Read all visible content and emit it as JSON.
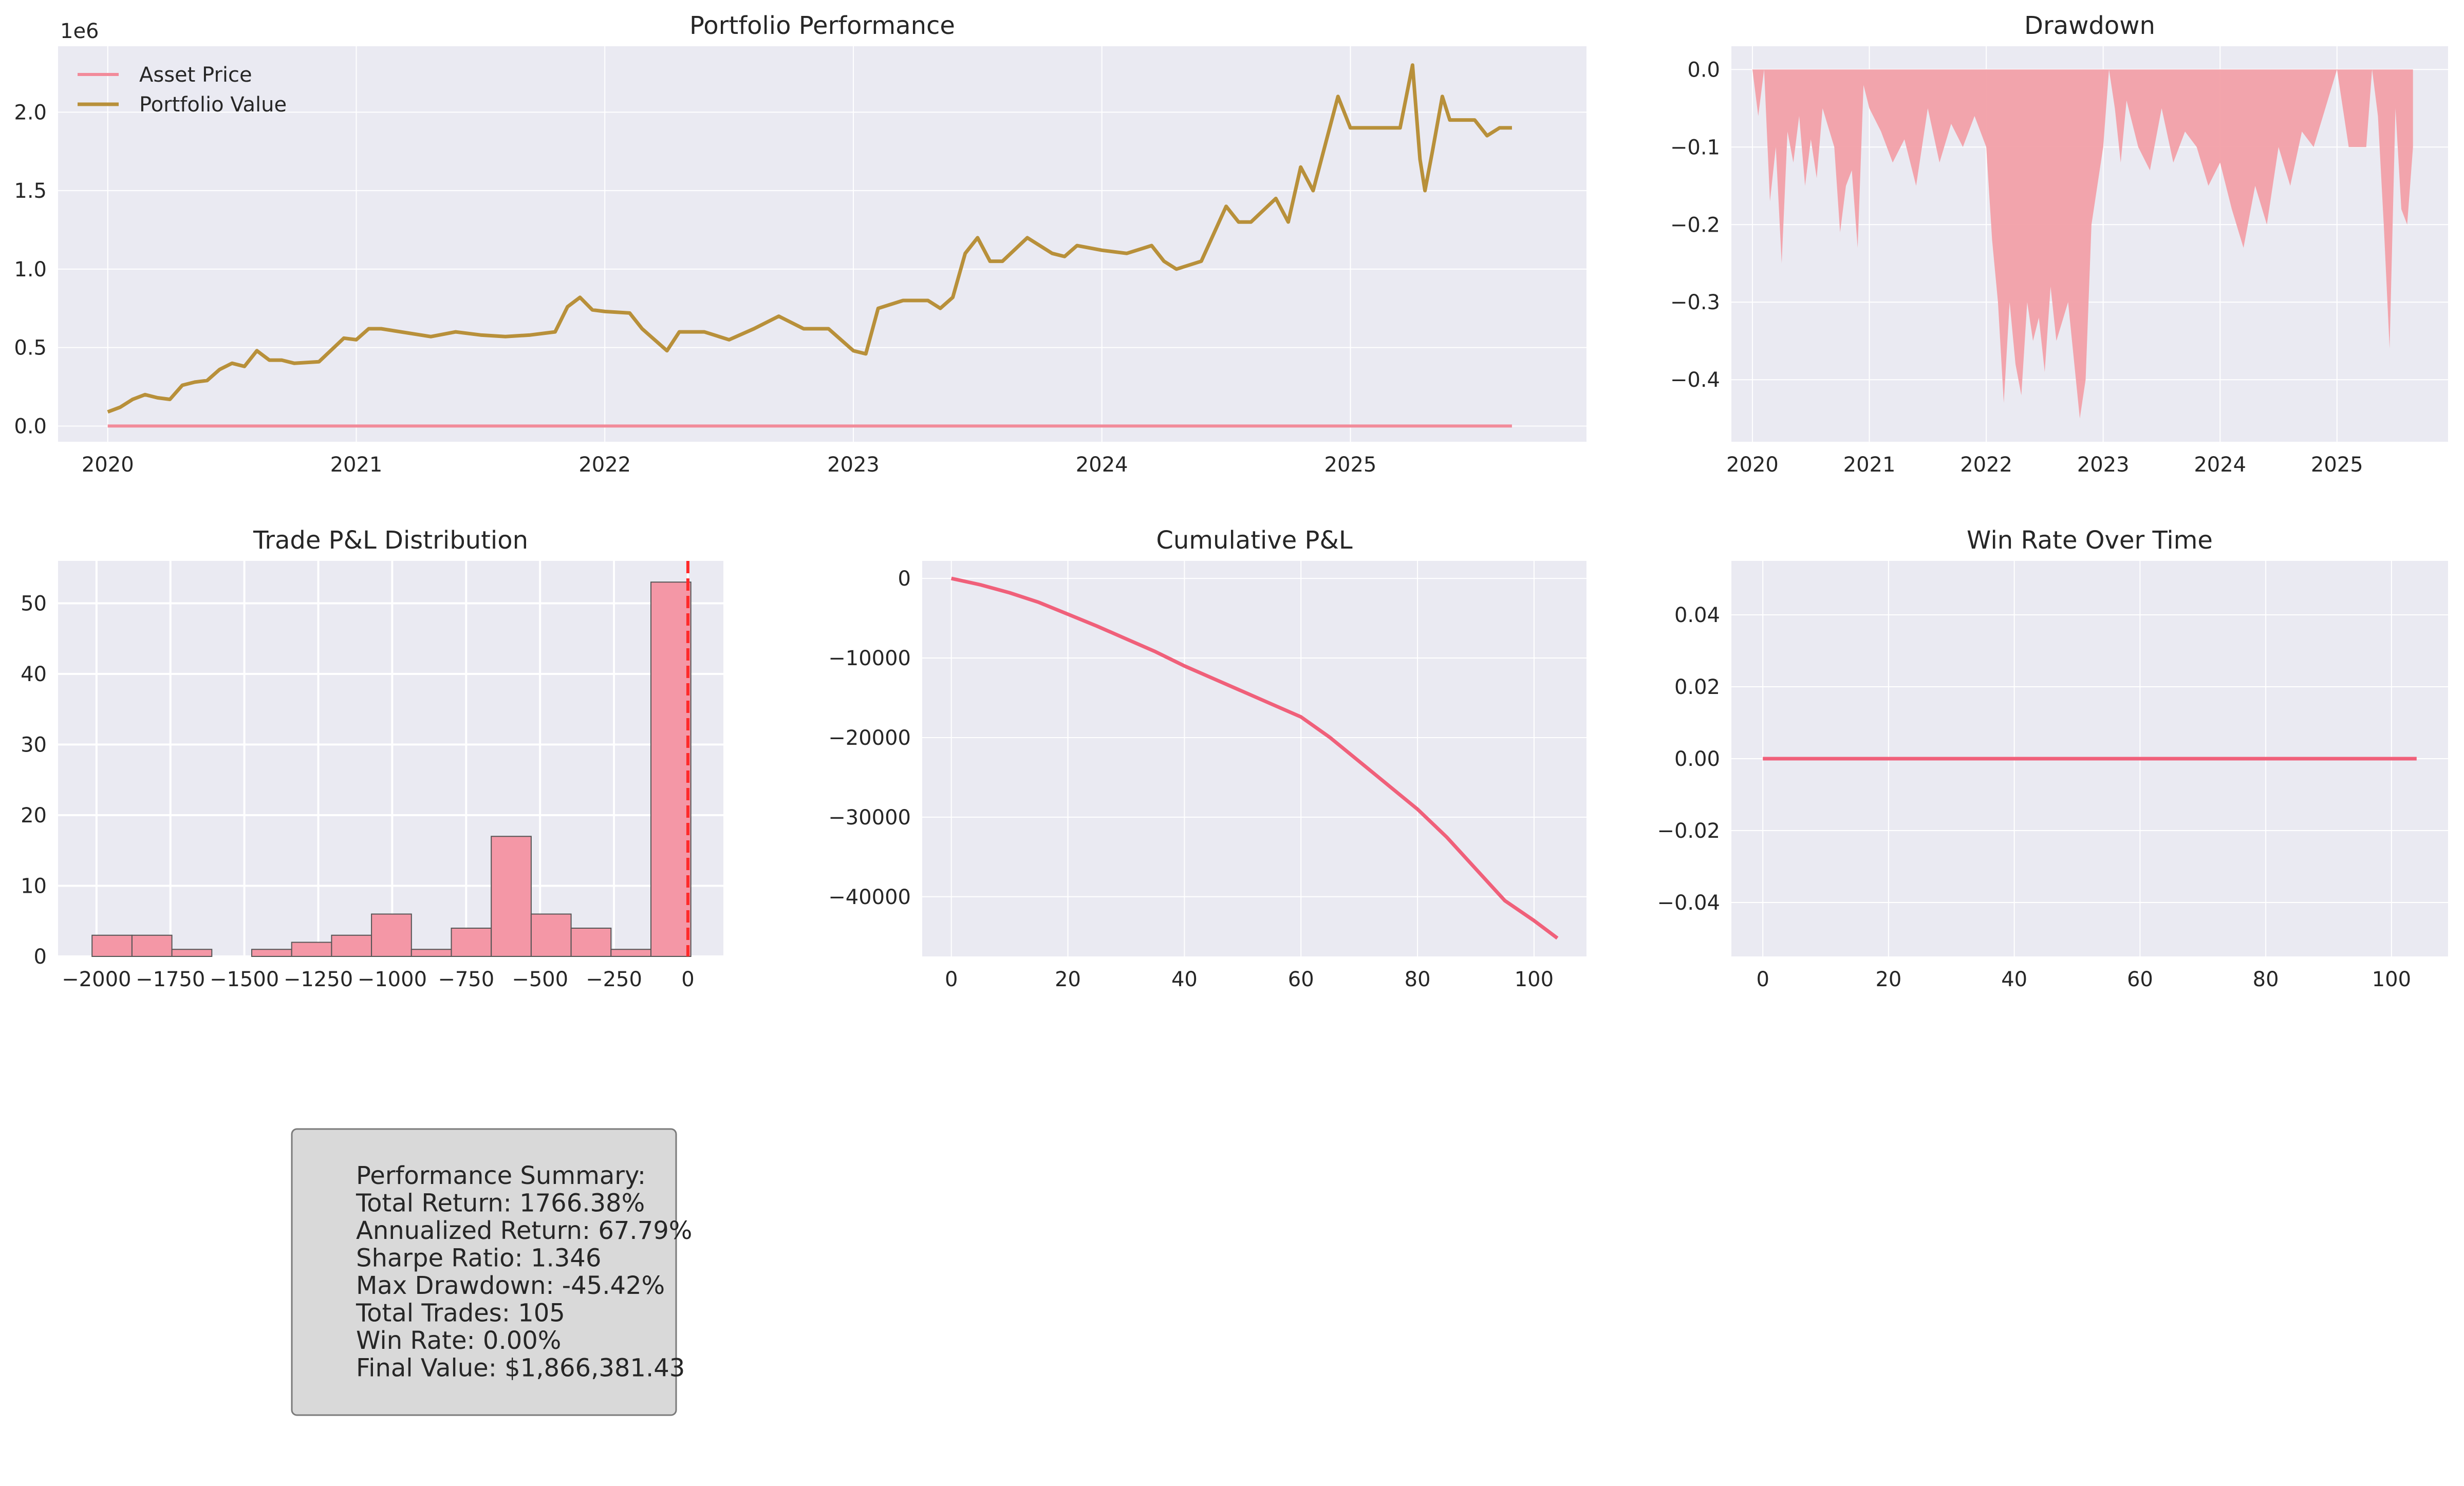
{
  "figure": {
    "background": "#ffffff",
    "axes_facecolor": "#eaeaf2",
    "grid_color": "#ffffff"
  },
  "colors": {
    "asset_price": "#f28b9a",
    "portfolio_value": "#b8903a",
    "drawdown_fill": "#f2a0a8",
    "histogram_bar": "#f497a6",
    "histogram_edge": "#555555",
    "zero_line": "#ff2a2a",
    "cumulative_line": "#f0607a",
    "winrate_line": "#f0607a",
    "summary_box": "#d9d9d9"
  },
  "chart_data": [
    {
      "id": "portfolio",
      "type": "line",
      "title": "Portfolio Performance",
      "xlabel": "",
      "ylabel": "",
      "y_offset_text": "1e6",
      "xlim": [
        2019.8,
        2025.95
      ],
      "ylim": [
        -0.1,
        2.42
      ],
      "x_ticks": [
        2020,
        2021,
        2022,
        2023,
        2024,
        2025
      ],
      "x_tick_labels": [
        "2020",
        "2021",
        "2022",
        "2023",
        "2024",
        "2025"
      ],
      "y_ticks": [
        0.0,
        0.5,
        1.0,
        1.5,
        2.0
      ],
      "y_tick_labels": [
        "0.0",
        "0.5",
        "1.0",
        "1.5",
        "2.0"
      ],
      "legend_position": "upper-left",
      "grid": true,
      "series": [
        {
          "name": "Asset Price",
          "x": [
            2020.0,
            2025.65
          ],
          "y": [
            0.0,
            0.0
          ]
        },
        {
          "name": "Portfolio Value",
          "x": [
            2020.0,
            2020.05,
            2020.1,
            2020.15,
            2020.2,
            2020.25,
            2020.3,
            2020.35,
            2020.4,
            2020.45,
            2020.5,
            2020.55,
            2020.6,
            2020.65,
            2020.7,
            2020.75,
            2020.85,
            2020.95,
            2021.0,
            2021.05,
            2021.1,
            2021.3,
            2021.4,
            2021.5,
            2021.6,
            2021.7,
            2021.8,
            2021.85,
            2021.9,
            2021.95,
            2022.0,
            2022.1,
            2022.15,
            2022.2,
            2022.25,
            2022.3,
            2022.4,
            2022.5,
            2022.6,
            2022.7,
            2022.8,
            2022.9,
            2023.0,
            2023.05,
            2023.1,
            2023.2,
            2023.3,
            2023.35,
            2023.4,
            2023.45,
            2023.5,
            2023.55,
            2023.6,
            2023.7,
            2023.8,
            2023.85,
            2023.9,
            2024.0,
            2024.1,
            2024.2,
            2024.25,
            2024.3,
            2024.4,
            2024.5,
            2024.55,
            2024.6,
            2024.7,
            2024.75,
            2024.8,
            2024.85,
            2024.9,
            2024.95,
            2025.0,
            2025.05,
            2025.1,
            2025.2,
            2025.25,
            2025.28,
            2025.3,
            2025.33,
            2025.37,
            2025.4,
            2025.45,
            2025.5,
            2025.55,
            2025.6,
            2025.65
          ],
          "y": [
            0.09,
            0.12,
            0.17,
            0.2,
            0.18,
            0.17,
            0.26,
            0.28,
            0.29,
            0.36,
            0.4,
            0.38,
            0.48,
            0.42,
            0.42,
            0.4,
            0.41,
            0.56,
            0.55,
            0.62,
            0.62,
            0.57,
            0.6,
            0.58,
            0.57,
            0.58,
            0.6,
            0.76,
            0.82,
            0.74,
            0.73,
            0.72,
            0.62,
            0.55,
            0.48,
            0.6,
            0.6,
            0.55,
            0.62,
            0.7,
            0.62,
            0.62,
            0.48,
            0.46,
            0.75,
            0.8,
            0.8,
            0.75,
            0.82,
            1.1,
            1.2,
            1.05,
            1.05,
            1.2,
            1.1,
            1.08,
            1.15,
            1.12,
            1.1,
            1.15,
            1.05,
            1.0,
            1.05,
            1.4,
            1.3,
            1.3,
            1.45,
            1.3,
            1.65,
            1.5,
            1.8,
            2.1,
            1.9,
            1.9,
            1.9,
            1.9,
            2.3,
            1.7,
            1.5,
            1.75,
            2.1,
            1.95,
            1.95,
            1.95,
            1.85,
            1.9,
            1.9
          ]
        }
      ]
    },
    {
      "id": "drawdown",
      "type": "area",
      "title": "Drawdown",
      "xlim": [
        2019.82,
        2025.95
      ],
      "ylim": [
        -0.48,
        0.03
      ],
      "x_ticks": [
        2020,
        2021,
        2022,
        2023,
        2024,
        2025
      ],
      "x_tick_labels": [
        "2020",
        "2021",
        "2022",
        "2023",
        "2024",
        "2025"
      ],
      "y_ticks": [
        0.0,
        -0.1,
        -0.2,
        -0.3,
        -0.4
      ],
      "y_tick_labels": [
        "0.0",
        "−0.1",
        "−0.2",
        "−0.3",
        "−0.4"
      ],
      "grid": true,
      "x": [
        2020.0,
        2020.05,
        2020.1,
        2020.15,
        2020.2,
        2020.25,
        2020.3,
        2020.35,
        2020.4,
        2020.45,
        2020.5,
        2020.55,
        2020.6,
        2020.7,
        2020.75,
        2020.8,
        2020.85,
        2020.9,
        2020.95,
        2021.0,
        2021.1,
        2021.2,
        2021.3,
        2021.4,
        2021.5,
        2021.6,
        2021.7,
        2021.8,
        2021.9,
        2022.0,
        2022.05,
        2022.1,
        2022.15,
        2022.2,
        2022.25,
        2022.3,
        2022.35,
        2022.4,
        2022.45,
        2022.5,
        2022.55,
        2022.6,
        2022.7,
        2022.8,
        2022.85,
        2022.9,
        2022.95,
        2023.0,
        2023.05,
        2023.1,
        2023.15,
        2023.2,
        2023.3,
        2023.4,
        2023.5,
        2023.6,
        2023.7,
        2023.8,
        2023.9,
        2024.0,
        2024.1,
        2024.2,
        2024.3,
        2024.4,
        2024.5,
        2024.6,
        2024.7,
        2024.8,
        2024.9,
        2025.0,
        2025.1,
        2025.2,
        2025.25,
        2025.3,
        2025.35,
        2025.4,
        2025.45,
        2025.5,
        2025.55,
        2025.6,
        2025.65
      ],
      "y": [
        0.0,
        -0.06,
        0.0,
        -0.17,
        -0.1,
        -0.25,
        -0.08,
        -0.12,
        -0.06,
        -0.15,
        -0.09,
        -0.14,
        -0.05,
        -0.1,
        -0.21,
        -0.15,
        -0.13,
        -0.23,
        -0.02,
        -0.05,
        -0.08,
        -0.12,
        -0.09,
        -0.15,
        -0.05,
        -0.12,
        -0.07,
        -0.1,
        -0.06,
        -0.1,
        -0.22,
        -0.3,
        -0.43,
        -0.3,
        -0.38,
        -0.42,
        -0.3,
        -0.35,
        -0.32,
        -0.39,
        -0.28,
        -0.35,
        -0.3,
        -0.45,
        -0.4,
        -0.2,
        -0.15,
        -0.1,
        0.0,
        -0.05,
        -0.12,
        -0.04,
        -0.1,
        -0.13,
        -0.05,
        -0.12,
        -0.08,
        -0.1,
        -0.15,
        -0.12,
        -0.18,
        -0.23,
        -0.15,
        -0.2,
        -0.1,
        -0.15,
        -0.08,
        -0.1,
        -0.05,
        0.0,
        -0.1,
        -0.1,
        -0.1,
        0.0,
        -0.06,
        -0.2,
        -0.36,
        -0.05,
        -0.18,
        -0.2,
        -0.1
      ]
    },
    {
      "id": "trade_pnl_hist",
      "type": "bar",
      "title": "Trade P&L Distribution",
      "xlim": [
        -2130,
        120
      ],
      "ylim": [
        0,
        56
      ],
      "x_ticks": [
        -2000,
        -1750,
        -1500,
        -1250,
        -1000,
        -750,
        -500,
        -250,
        0
      ],
      "x_tick_labels": [
        "−2000",
        "−1750",
        "−1500",
        "−1250",
        "−1000",
        "−750",
        "−500",
        "−250",
        "0"
      ],
      "y_ticks": [
        0,
        10,
        20,
        30,
        40,
        50
      ],
      "y_tick_labels": [
        "0",
        "10",
        "20",
        "30",
        "40",
        "50"
      ],
      "bin_width": 135,
      "bin_starts": [
        -2015,
        -1880,
        -1745,
        -1610,
        -1475,
        -1340,
        -1205,
        -1070,
        -935,
        -800,
        -665,
        -530,
        -395,
        -260,
        -125
      ],
      "values": [
        3,
        3,
        1,
        0,
        1,
        2,
        3,
        6,
        1,
        4,
        17,
        6,
        4,
        1,
        53
      ],
      "vline_x": 0,
      "grid": true
    },
    {
      "id": "cumulative_pnl",
      "type": "line",
      "title": "Cumulative P&L",
      "xlim": [
        -5,
        109
      ],
      "ylim": [
        -47500,
        2200
      ],
      "x_ticks": [
        0,
        20,
        40,
        60,
        80,
        100
      ],
      "x_tick_labels": [
        "0",
        "20",
        "40",
        "60",
        "80",
        "100"
      ],
      "y_ticks": [
        0,
        -10000,
        -20000,
        -30000,
        -40000
      ],
      "y_tick_labels": [
        "0",
        "−10000",
        "−20000",
        "−30000",
        "−40000"
      ],
      "x": [
        0,
        5,
        10,
        15,
        20,
        25,
        30,
        35,
        40,
        45,
        50,
        55,
        60,
        65,
        70,
        75,
        80,
        85,
        90,
        95,
        100,
        104
      ],
      "y": [
        0,
        -800,
        -1800,
        -3000,
        -4500,
        -6000,
        -7600,
        -9200,
        -11000,
        -12600,
        -14200,
        -15800,
        -17400,
        -20000,
        -23000,
        -26000,
        -29000,
        -32500,
        -36500,
        -40500,
        -43000,
        -45200
      ],
      "grid": true
    },
    {
      "id": "win_rate",
      "type": "line",
      "title": "Win Rate Over Time",
      "xlim": [
        -5,
        109
      ],
      "ylim": [
        -0.055,
        0.055
      ],
      "x_ticks": [
        0,
        20,
        40,
        60,
        80,
        100
      ],
      "x_tick_labels": [
        "0",
        "20",
        "40",
        "60",
        "80",
        "100"
      ],
      "y_ticks": [
        0.04,
        0.02,
        0.0,
        -0.02,
        -0.04
      ],
      "y_tick_labels": [
        "0.04",
        "0.02",
        "0.00",
        "−0.02",
        "−0.04"
      ],
      "x": [
        0,
        104
      ],
      "y": [
        0,
        0
      ],
      "grid": true
    }
  ],
  "summary": {
    "lines": [
      "Performance Summary:",
      "Total Return: 1766.38%",
      "Annualized Return: 67.79%",
      "Sharpe Ratio: 1.346",
      "Max Drawdown: -45.42%",
      "Total Trades: 105",
      "Win Rate: 0.00%",
      "Final Value: $1,866,381.43"
    ]
  }
}
